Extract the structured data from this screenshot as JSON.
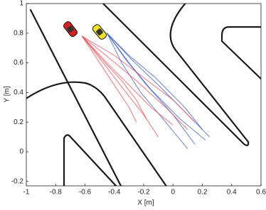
{
  "chart_data": {
    "type": "line",
    "xlabel": "X [m]",
    "ylabel": "Y [m]",
    "xlim": [
      -1,
      0.6
    ],
    "ylim": [
      -0.23,
      1
    ],
    "xticks": [
      -1,
      -0.8,
      -0.6,
      -0.4,
      -0.2,
      0,
      0.2,
      0.4,
      0.6
    ],
    "yticks": [
      -0.2,
      0,
      0.2,
      0.4,
      0.6,
      0.8,
      1
    ],
    "series": [
      {
        "color": "#3557c9",
        "x": [
          -0.45,
          -0.3,
          -0.15,
          0.05,
          0.22
        ],
        "y": [
          0.8,
          0.6,
          0.42,
          0.22,
          0.08
        ]
      },
      {
        "color": "#3557c9",
        "x": [
          -0.45,
          -0.32,
          -0.18,
          0.0,
          0.15
        ],
        "y": [
          0.8,
          0.62,
          0.45,
          0.25,
          0.05
        ]
      },
      {
        "color": "#3557c9",
        "x": [
          -0.45,
          -0.28,
          -0.1,
          0.1,
          0.25
        ],
        "y": [
          0.8,
          0.62,
          0.45,
          0.25,
          0.1
        ]
      },
      {
        "color": "#3557c9",
        "x": [
          -0.45,
          -0.35,
          -0.22,
          -0.05,
          0.1
        ],
        "y": [
          0.8,
          0.6,
          0.4,
          0.2,
          0.02
        ]
      },
      {
        "color": "#3557c9",
        "x": [
          -0.45,
          -0.3,
          -0.12,
          0.08,
          0.2
        ],
        "y": [
          0.8,
          0.65,
          0.5,
          0.3,
          0.15
        ]
      },
      {
        "color": "#f0474f",
        "x": [
          -0.62,
          -0.45,
          -0.3,
          -0.15,
          0.0
        ],
        "y": [
          0.78,
          0.6,
          0.45,
          0.3,
          0.18
        ]
      },
      {
        "color": "#f0474f",
        "x": [
          -0.62,
          -0.48,
          -0.35,
          -0.25,
          -0.18
        ],
        "y": [
          0.78,
          0.62,
          0.48,
          0.35,
          0.22
        ]
      },
      {
        "color": "#f0474f",
        "x": [
          -0.62,
          -0.42,
          -0.25,
          -0.05,
          0.1
        ],
        "y": [
          0.78,
          0.62,
          0.48,
          0.3,
          0.15
        ]
      },
      {
        "color": "#f0474f",
        "x": [
          -0.62,
          -0.5,
          -0.4,
          -0.3,
          -0.25
        ],
        "y": [
          0.78,
          0.6,
          0.45,
          0.3,
          0.2
        ]
      },
      {
        "color": "#f0474f",
        "x": [
          -0.62,
          -0.4,
          -0.2,
          0.0,
          0.15
        ],
        "y": [
          0.78,
          0.65,
          0.5,
          0.35,
          0.2
        ]
      },
      {
        "color": "#f0474f",
        "x": [
          -0.62,
          -0.46,
          -0.32,
          -0.2,
          -0.1
        ],
        "y": [
          0.78,
          0.58,
          0.4,
          0.25,
          0.1
        ]
      }
    ]
  }
}
